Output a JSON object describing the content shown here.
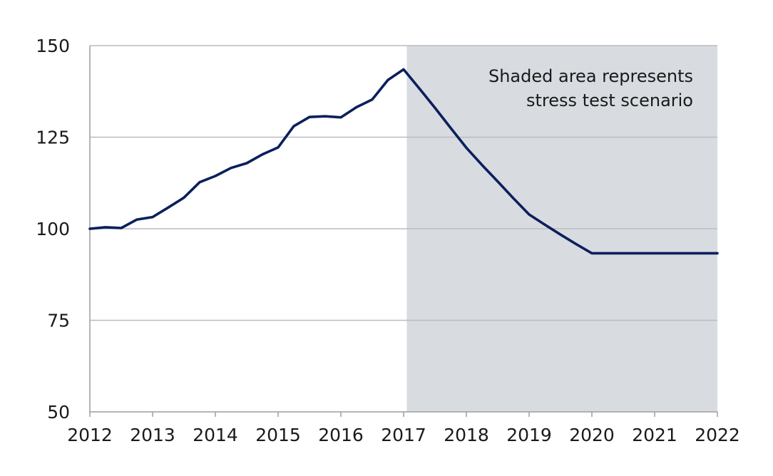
{
  "chart_data": {
    "type": "line",
    "title": "",
    "xlabel": "",
    "ylabel": "",
    "xlim": [
      2012,
      2022
    ],
    "ylim": [
      50,
      150
    ],
    "x_ticks": [
      2012,
      2013,
      2014,
      2015,
      2016,
      2017,
      2018,
      2019,
      2020,
      2021,
      2022
    ],
    "y_ticks": [
      50,
      75,
      100,
      125,
      150
    ],
    "grid": "horizontal",
    "legend": "none",
    "shaded_region": {
      "x_start": 2017.05,
      "x_end": 2022.05,
      "color": "#d8dbe0"
    },
    "annotation": {
      "lines": [
        "Shaded area represents",
        "stress test scenario"
      ],
      "position": "top-right"
    },
    "series": [
      {
        "color": "#0a1f5c",
        "x": [
          2012.0,
          2012.25,
          2012.5,
          2012.75,
          2013.0,
          2013.25,
          2013.5,
          2013.75,
          2014.0,
          2014.25,
          2014.5,
          2014.75,
          2015.0,
          2015.25,
          2015.5,
          2015.75,
          2016.0,
          2016.25,
          2016.5,
          2016.75,
          2017.0,
          2017.25,
          2017.5,
          2017.75,
          2018.0,
          2018.25,
          2018.5,
          2018.75,
          2019.0,
          2019.25,
          2019.5,
          2019.75,
          2020.0,
          2020.5,
          2021.0,
          2021.5,
          2022.0
        ],
        "values": [
          100.0,
          100.4,
          100.2,
          102.5,
          103.2,
          105.8,
          108.5,
          112.7,
          114.4,
          116.6,
          117.9,
          120.3,
          122.2,
          128.0,
          130.5,
          130.7,
          130.4,
          133.2,
          135.3,
          140.6,
          143.5,
          138.3,
          133.0,
          127.5,
          122.1,
          117.4,
          112.9,
          108.3,
          103.9,
          101.1,
          98.4,
          95.8,
          93.3,
          93.3,
          93.3,
          93.3,
          93.3
        ]
      }
    ]
  }
}
